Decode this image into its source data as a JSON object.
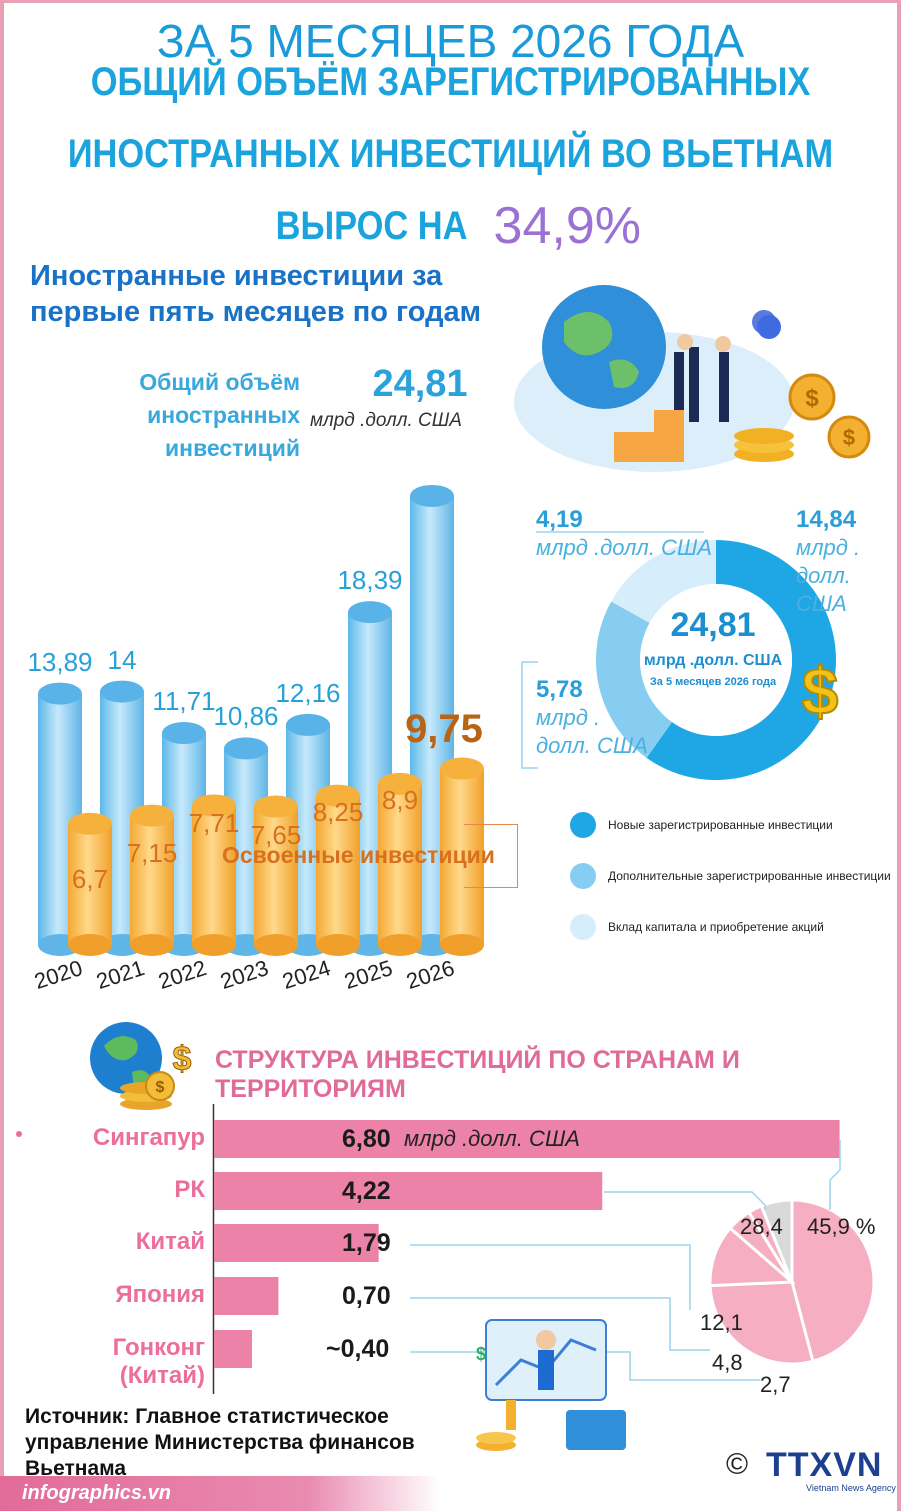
{
  "header": {
    "line1": "ЗА 5 МЕСЯЦЕВ 2026 ГОДА",
    "line2": "ОБЩИЙ ОБЪЁМ ЗАРЕГИСТРИРОВАННЫХ",
    "line3": "ИНОСТРАННЫХ ИНВЕСТИЦИЙ ВО ВЬЕТНАМ",
    "line4": "ВЫРОС НА",
    "growth": "34,9%"
  },
  "bar_section": {
    "subtitle_1": "Иностранные инвестиции за",
    "subtitle_2": "первые пять месяцев по годам",
    "total_label_1": "Общий объём",
    "total_label_2": "иностранных",
    "total_label_3": "инвестиций",
    "total_value": "24,81",
    "total_unit": "млрд .долл. США",
    "disbursed_label": "Освоенные инвестиции"
  },
  "donut": {
    "center_value": "24,81",
    "center_unit": "млрд .долл. США",
    "center_period": "За 5 месяцев 2026 года",
    "seg_new_value": "14,84",
    "seg_new_unit_1": "млрд .",
    "seg_new_unit_2": "долл.",
    "seg_new_unit_3": "США",
    "seg_add_value": "5,78",
    "seg_add_unit_1": "млрд .",
    "seg_add_unit_2": "долл. США",
    "seg_cap_value": "4,19",
    "seg_cap_unit": "млрд .долл. США",
    "legend": [
      {
        "label": "Новые зарегистрированные инвестиции",
        "color": "#1ea7e4"
      },
      {
        "label": "Дополнительные зарегистрированные инвестиции",
        "color": "#86cdf1"
      },
      {
        "label": "Вклад капитала и приобретение акций",
        "color": "#d6eefb"
      }
    ]
  },
  "countries": {
    "title": "СТРУКТУРА ИНВЕСТИЦИЙ ПО СТРАНАМ И ТЕРРИТОРИЯМ",
    "unit": "млрд .долл. США",
    "rows": [
      {
        "name": "Сингапур",
        "value": "6,80",
        "num": 6.8
      },
      {
        "name": "РК",
        "value": "4,22",
        "num": 4.22
      },
      {
        "name": "Китай",
        "value": "1,79",
        "num": 1.79
      },
      {
        "name": "Япония",
        "value": "0,70",
        "num": 0.7
      },
      {
        "name": "Гонконг",
        "name2": "(Китай)",
        "value": "~0,40",
        "num": 0.4
      }
    ],
    "pie_labels": {
      "p1": "45,9 %",
      "p2": "28,4",
      "p3": "12,1",
      "p4": "4,8",
      "p5": "2,7"
    }
  },
  "footer": {
    "source_1": "Источник: Главное статистическое",
    "source_2": "управление Министерства финансов",
    "source_3": "Вьетнама",
    "site": "infographics.vn",
    "copyright": "©",
    "brand": "TTXVN",
    "brand_sub": "Vietnam News Agency"
  },
  "chart_data": [
    {
      "type": "bar",
      "categories": [
        "2020",
        "2021",
        "2022",
        "2023",
        "2024",
        "2025",
        "2026"
      ],
      "series": [
        {
          "name": "Общий объём иностранных инвестиций",
          "values": [
            13.89,
            14,
            11.71,
            10.86,
            12.16,
            18.39,
            24.81
          ],
          "labels": [
            "13,89",
            "14",
            "11,71",
            "10,86",
            "12,16",
            "18,39",
            "24,81"
          ],
          "color": "#7cc9f1"
        },
        {
          "name": "Освоенные инвестиции",
          "values": [
            6.7,
            7.15,
            7.71,
            7.65,
            8.25,
            8.9,
            9.75
          ],
          "labels": [
            "6,7",
            "7,15",
            "7,71",
            "7,65",
            "8,25",
            "8,9",
            "9,75"
          ],
          "color": "#f5b23d"
        }
      ],
      "ylim": [
        0,
        26
      ]
    },
    {
      "type": "pie",
      "labels": [
        "Новые зарегистрированные инвестиции",
        "Дополнительные зарегистрированные инвестиции",
        "Вклад капитала и приобретение акций"
      ],
      "values": [
        14.84,
        5.78,
        4.19
      ],
      "colors": [
        "#1ea7e4",
        "#86cdf1",
        "#d6eefb"
      ]
    },
    {
      "type": "bar",
      "orientation": "horizontal",
      "categories": [
        "Сингапур",
        "РК",
        "Китай",
        "Япония",
        "Гонконг (Китай)"
      ],
      "values": [
        6.8,
        4.22,
        1.79,
        0.7,
        0.4
      ],
      "unit": "млрд .долл. США",
      "color": "#ec82a8"
    },
    {
      "type": "pie",
      "labels": [
        "Сингапур",
        "РК",
        "Китай",
        "Япония",
        "Гонконг (Китай)"
      ],
      "values": [
        45.9,
        28.4,
        12.1,
        4.8,
        2.7
      ],
      "colors": [
        "#f5b6c6",
        "#f5b6c6",
        "#f5b6c6",
        "#f5b6c6",
        "#f5b6c6"
      ]
    }
  ]
}
